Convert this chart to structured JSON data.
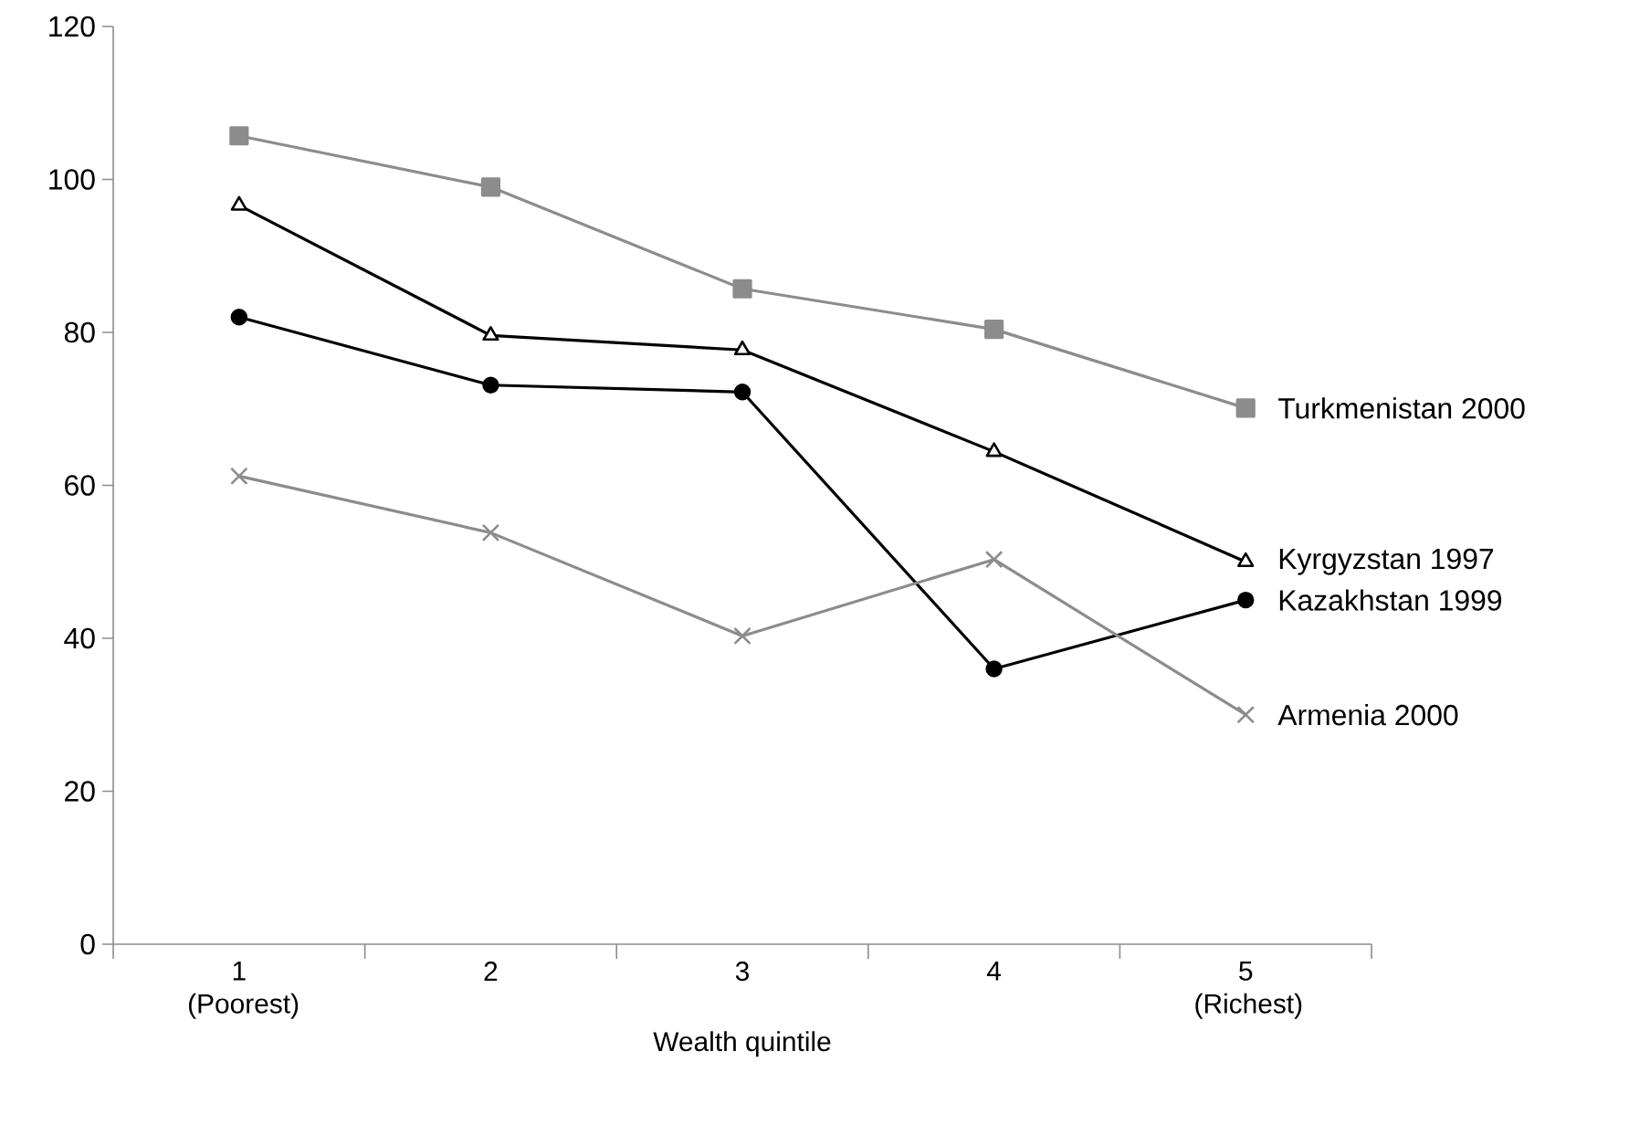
{
  "chart_data": {
    "type": "line",
    "xlabel": "Wealth quintile",
    "categories": [
      "1 (Poorest)",
      "2",
      "3",
      "4",
      "5 (Richest)"
    ],
    "series": [
      {
        "name": "Turkmenistan 2000",
        "color": "#8c8c8c",
        "marker": "square",
        "values": [
          105.7,
          99,
          85.7,
          80.4,
          70.1
        ]
      },
      {
        "name": "Kyrgyzstan 1997",
        "color": "#000000",
        "marker": "triangle",
        "values": [
          96.6,
          79.6,
          77.7,
          64.4,
          50
        ]
      },
      {
        "name": "Kazakhstan 1999",
        "color": "#000000",
        "marker": "circle",
        "values": [
          82,
          73.1,
          72.2,
          36,
          45
        ]
      },
      {
        "name": "Armenia 2000",
        "color": "#8c8c8c",
        "marker": "cross",
        "values": [
          61.2,
          53.8,
          40.3,
          50.3,
          30
        ]
      }
    ],
    "ylim": [
      0,
      120
    ],
    "yticks": [
      0,
      20,
      40,
      60,
      80,
      100,
      120
    ],
    "grid": false,
    "legend": false
  }
}
